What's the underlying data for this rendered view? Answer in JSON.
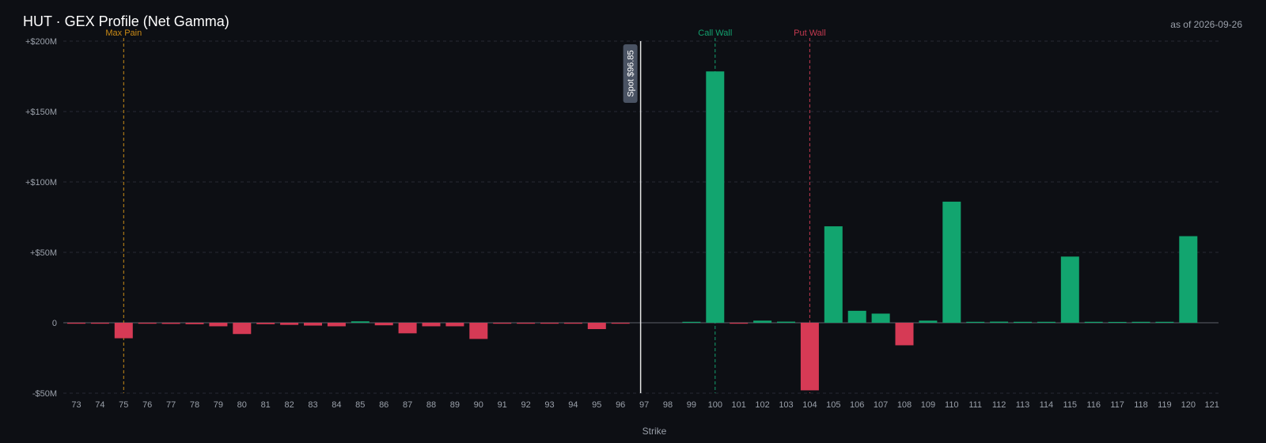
{
  "header": {
    "title": "HUT · GEX Profile (Net Gamma)",
    "as_of": "as of 2026-09-26"
  },
  "colors": {
    "background": "#0d0f14",
    "positive_bar": "#12a56f",
    "negative_bar": "#d63a55",
    "grid": "#262a33",
    "zero_line": "#5a5f69",
    "axis_text": "#9aa0aa",
    "spot_line": "#e6e6e6",
    "spot_label_bg": "#4a5363",
    "max_pain": "#c98a16",
    "call_wall": "#13a06e",
    "put_wall": "#c2394f"
  },
  "chart_data": {
    "type": "bar",
    "xlabel": "Strike",
    "ylabel": "",
    "ylim": [
      -50000000,
      200000000
    ],
    "yticks": [
      {
        "value": 200000000,
        "label": "+$200M"
      },
      {
        "value": 150000000,
        "label": "+$150M"
      },
      {
        "value": 100000000,
        "label": "+$100M"
      },
      {
        "value": 50000000,
        "label": "+$50M"
      },
      {
        "value": 0,
        "label": "0"
      },
      {
        "value": -50000000,
        "label": "-$50M"
      }
    ],
    "grid": true,
    "categories": [
      "73",
      "74",
      "75",
      "76",
      "77",
      "78",
      "79",
      "80",
      "81",
      "82",
      "83",
      "84",
      "85",
      "86",
      "87",
      "88",
      "89",
      "90",
      "91",
      "92",
      "93",
      "94",
      "95",
      "96",
      "97",
      "98",
      "99",
      "100",
      "101",
      "102",
      "103",
      "104",
      "105",
      "106",
      "107",
      "108",
      "109",
      "110",
      "111",
      "112",
      "113",
      "114",
      "115",
      "116",
      "117",
      "118",
      "119",
      "120",
      "121"
    ],
    "values": [
      -200000,
      -500000,
      -11000000,
      -300000,
      -800000,
      -1000000,
      -2500000,
      -8000000,
      -1000000,
      -1500000,
      -2000000,
      -2500000,
      1000000,
      -1800000,
      -7500000,
      -2500000,
      -2500000,
      -11500000,
      -500000,
      -300000,
      -200000,
      -200000,
      -4500000,
      -100000,
      0,
      0,
      500000,
      178500000,
      -300000,
      1500000,
      800000,
      -48000000,
      68500000,
      8500000,
      6500000,
      -16000000,
      1500000,
      86000000,
      500000,
      800000,
      500000,
      500000,
      47000000,
      400000,
      600000,
      200000,
      200000,
      61500000,
      0
    ],
    "annotations": {
      "spot": {
        "strike": 96.85,
        "label": "Spot $96.85"
      },
      "max_pain": {
        "strike": 75,
        "label": "Max Pain"
      },
      "call_wall": {
        "strike": 100,
        "label": "Call Wall"
      },
      "put_wall": {
        "strike": 104,
        "label": "Put Wall"
      }
    }
  }
}
